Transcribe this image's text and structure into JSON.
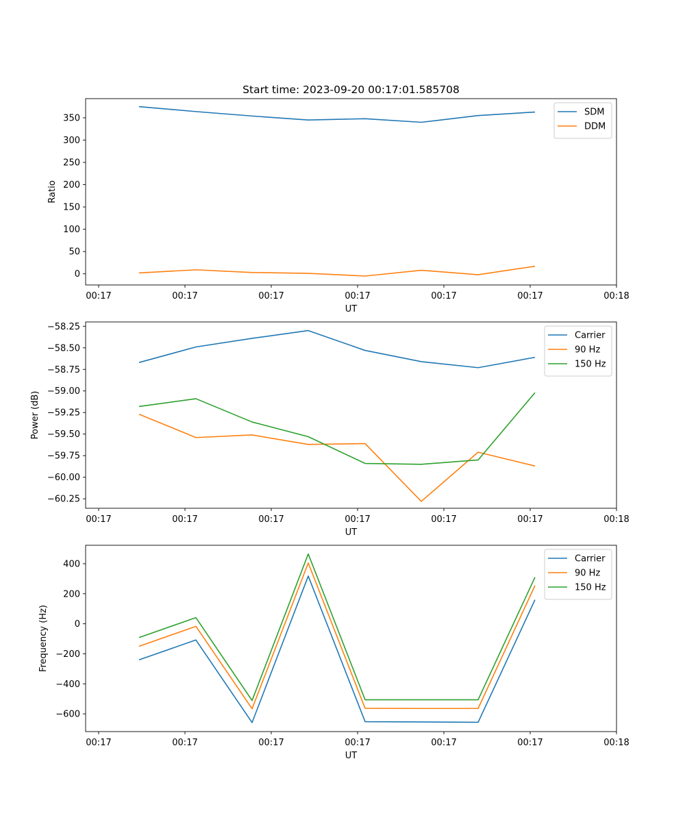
{
  "chart_data": [
    {
      "type": "line",
      "title": "Start time: 2023-09-20 00:17:01.585708",
      "xlabel": "UT",
      "ylabel": "Ratio",
      "xtick_labels": [
        "00:17",
        "00:17",
        "00:17",
        "00:17",
        "00:17",
        "00:17",
        "00:18"
      ],
      "ylim": [
        -25,
        393
      ],
      "yticks": [
        0,
        50,
        100,
        150,
        200,
        250,
        300,
        350
      ],
      "ytick_labels": [
        "0",
        "50",
        "100",
        "150",
        "200",
        "250",
        "300",
        "350"
      ],
      "legend_position": "top-right",
      "series": [
        {
          "name": "SDM",
          "color": "#1f77b4",
          "values": [
            375,
            364,
            354,
            345,
            348,
            340,
            355,
            363
          ]
        },
        {
          "name": "DDM",
          "color": "#ff7f0e",
          "values": [
            2,
            9,
            3,
            1,
            -5,
            8,
            -2,
            17
          ]
        }
      ]
    },
    {
      "type": "line",
      "title": "",
      "xlabel": "UT",
      "ylabel": "Power (dB)",
      "xtick_labels": [
        "00:17",
        "00:17",
        "00:17",
        "00:17",
        "00:17",
        "00:17",
        "00:18"
      ],
      "ylim": [
        -60.36,
        -58.2
      ],
      "yticks": [
        -60.25,
        -60.0,
        -59.75,
        -59.5,
        -59.25,
        -59.0,
        -58.75,
        -58.5,
        -58.25
      ],
      "ytick_labels": [
        "−60.25",
        "−60.00",
        "−59.75",
        "−59.50",
        "−59.25",
        "−59.00",
        "−58.75",
        "−58.50",
        "−58.25"
      ],
      "legend_position": "top-right",
      "series": [
        {
          "name": "Carrier",
          "color": "#1f77b4",
          "values": [
            -58.67,
            -58.49,
            -58.39,
            -58.3,
            -58.53,
            -58.66,
            -58.73,
            -58.61
          ]
        },
        {
          "name": "90 Hz",
          "color": "#ff7f0e",
          "values": [
            -59.27,
            -59.54,
            -59.51,
            -59.62,
            -59.61,
            -60.28,
            -59.71,
            -59.87
          ]
        },
        {
          "name": "150 Hz",
          "color": "#2ca02c",
          "values": [
            -59.18,
            -59.09,
            -59.36,
            -59.53,
            -59.84,
            -59.85,
            -59.8,
            -59.02
          ]
        }
      ]
    },
    {
      "type": "line",
      "title": "",
      "xlabel": "UT",
      "ylabel": "Frequency (Hz)",
      "xtick_labels": [
        "00:17",
        "00:17",
        "00:17",
        "00:17",
        "00:17",
        "00:17",
        "00:18"
      ],
      "ylim": [
        -718,
        523
      ],
      "yticks": [
        -600,
        -400,
        -200,
        0,
        200,
        400
      ],
      "ytick_labels": [
        "−600",
        "−400",
        "−200",
        "0",
        "200",
        "400"
      ],
      "legend_position": "top-right",
      "series": [
        {
          "name": "Carrier",
          "color": "#1f77b4",
          "values": [
            -240,
            -108,
            -658,
            318,
            -652,
            -654,
            -656,
            160
          ]
        },
        {
          "name": "90 Hz",
          "color": "#ff7f0e",
          "values": [
            -150,
            -17,
            -566,
            405,
            -563,
            -564,
            -564,
            255
          ]
        },
        {
          "name": "150 Hz",
          "color": "#2ca02c",
          "values": [
            -92,
            41,
            -511,
            465,
            -506,
            -506,
            -506,
            310
          ]
        }
      ]
    }
  ]
}
